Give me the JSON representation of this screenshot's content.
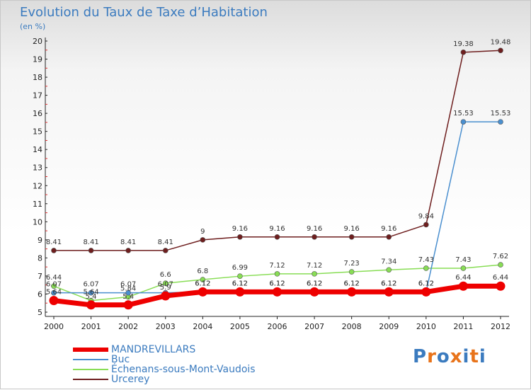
{
  "header": {
    "title": "Evolution du Taux de Taxe d’Habitation",
    "subtitle": "(en %)"
  },
  "logo": {
    "text": "Proxiti"
  },
  "chart_data": {
    "type": "line",
    "title": "Evolution du Taux de Taxe d’Habitation",
    "subtitle": "(en %)",
    "xlabel": "",
    "ylabel": "(en %)",
    "categories": [
      "2000",
      "2001",
      "2002",
      "2003",
      "2004",
      "2005",
      "2006",
      "2007",
      "2008",
      "2009",
      "2010",
      "2011",
      "2012"
    ],
    "ylim": [
      5,
      20
    ],
    "yticks": [
      5,
      6,
      7,
      8,
      9,
      10,
      11,
      12,
      13,
      14,
      15,
      16,
      17,
      18,
      19,
      20
    ],
    "grid": false,
    "legend_position": "bottom-left",
    "series": [
      {
        "name": "MANDREVILLARS",
        "color": "#ee0000",
        "values": [
          5.64,
          5.4,
          5.4,
          5.9,
          6.12,
          6.12,
          6.12,
          6.12,
          6.12,
          6.12,
          6.12,
          6.44,
          6.44
        ],
        "labels": [
          "5.64",
          "5.4",
          "5.4",
          "5.9",
          "6.12",
          "6.12",
          "6.12",
          "6.12",
          "6.12",
          "6.12",
          "6.12",
          "6.44",
          "6.44"
        ]
      },
      {
        "name": "Buc",
        "color": "#4a8fcf",
        "values": [
          6.07,
          6.07,
          6.07,
          6.07,
          6.12,
          6.12,
          6.12,
          6.12,
          6.12,
          6.12,
          6.12,
          15.53,
          15.53
        ],
        "labels": [
          "6.07",
          "6.07",
          "6.07",
          "6.07",
          "6.12",
          "6.12",
          "6.12",
          "6.12",
          "6.12",
          "6.12",
          "6.12",
          "15.53",
          "15.53"
        ]
      },
      {
        "name": "Échenans-sous-Mont-Vaudois",
        "color": "#88dd55",
        "values": [
          6.44,
          5.64,
          5.84,
          6.6,
          6.8,
          6.99,
          7.12,
          7.12,
          7.23,
          7.34,
          7.43,
          7.43,
          7.62
        ],
        "labels": [
          "6.44",
          "5.64",
          "5.84",
          "6.6",
          "6.8",
          "6.99",
          "7.12",
          "7.12",
          "7.23",
          "7.34",
          "7.43",
          "7.43",
          "7.62"
        ]
      },
      {
        "name": "Urcerey",
        "color": "#6e1e1e",
        "values": [
          8.41,
          8.41,
          8.41,
          8.41,
          9.0,
          9.16,
          9.16,
          9.16,
          9.16,
          9.16,
          9.84,
          19.38,
          19.48
        ],
        "labels": [
          "8.41",
          "8.41",
          "8.41",
          "8.41",
          "9",
          "9.16",
          "9.16",
          "9.16",
          "9.16",
          "9.16",
          "9.84",
          "19.38",
          "19.48"
        ]
      }
    ]
  }
}
